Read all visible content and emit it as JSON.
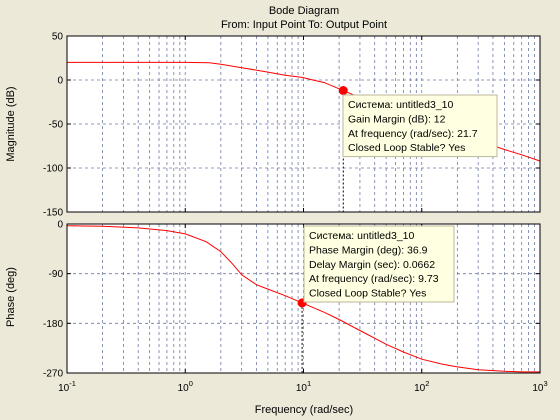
{
  "chart_data": {
    "type": "line",
    "title": "Bode Diagram",
    "subtitle": "From: Input Point  To: Output Point",
    "xlabel": "Frequency  (rad/sec)",
    "xscale": "log",
    "xlim": [
      0.1,
      1000
    ],
    "x_ticks": [
      {
        "v": 0.1,
        "base": "10",
        "exp": "-1"
      },
      {
        "v": 1,
        "base": "10",
        "exp": "0"
      },
      {
        "v": 10,
        "base": "10",
        "exp": "1"
      },
      {
        "v": 100,
        "base": "10",
        "exp": "2"
      },
      {
        "v": 1000,
        "base": "10",
        "exp": "3"
      }
    ],
    "grid": true,
    "line_color": "#ff0000",
    "marker_color": "#ff0000",
    "panels": [
      {
        "id": "magnitude",
        "ylabel": "Magnitude (dB)",
        "ylim": [
          -150,
          50
        ],
        "y_ticks": [
          {
            "v": 50,
            "label": "50"
          },
          {
            "v": 0,
            "label": "0"
          },
          {
            "v": -50,
            "label": "-50"
          },
          {
            "v": -100,
            "label": "-100"
          },
          {
            "v": -150,
            "label": "-150"
          }
        ],
        "series": [
          {
            "x": [
              0.1,
              0.3,
              1,
              1.6,
              2,
              3,
              5,
              7,
              9.73,
              12,
              15,
              21.7,
              30,
              50,
              70,
              100,
              150,
              200,
              300,
              500,
              700,
              1000
            ],
            "y": [
              20,
              20,
              20,
              19.7,
              18,
              14,
              9,
              5.5,
              3,
              0,
              -3,
              -12,
              -20,
              -32,
              -39,
              -47,
              -55,
              -61,
              -69,
              -79,
              -85,
              -92
            ]
          }
        ],
        "marker": {
          "x": 21.7,
          "y": -12
        },
        "tooltip": [
          "Система: untitled3_10",
          "Gain Margin (dB): 12",
          "At frequency (rad/sec): 21.7",
          "Closed Loop Stable? Yes"
        ]
      },
      {
        "id": "phase",
        "ylabel": "Phase (deg)",
        "ylim": [
          -270,
          0
        ],
        "y_ticks": [
          {
            "v": 0,
            "label": "0"
          },
          {
            "v": -90,
            "label": "-90"
          },
          {
            "v": -180,
            "label": "-180"
          },
          {
            "v": -270,
            "label": "-270"
          }
        ],
        "series": [
          {
            "x": [
              0.1,
              0.2,
              0.4,
              0.7,
              1,
              1.5,
              2,
              2.5,
              3,
              4,
              5,
              7,
              9.73,
              15,
              20,
              30,
              50,
              70,
              100,
              150,
              200,
              300,
              500,
              700,
              1000
            ],
            "y": [
              -3,
              -4,
              -7,
              -12,
              -18,
              -32,
              -50,
              -72,
              -92,
              -110,
              -118,
              -130,
              -143,
              -160,
              -173,
              -193,
              -218,
              -232,
              -245,
              -254,
              -259,
              -264,
              -267,
              -268,
              -268
            ]
          }
        ],
        "marker": {
          "x": 9.73,
          "y": -143
        },
        "tooltip": [
          "Система: untitled3_10",
          "Phase Margin (deg): 36.9",
          "Delay Margin (sec): 0.0662",
          "At frequency (rad/sec): 9.73",
          "Closed Loop Stable? Yes"
        ]
      }
    ]
  }
}
